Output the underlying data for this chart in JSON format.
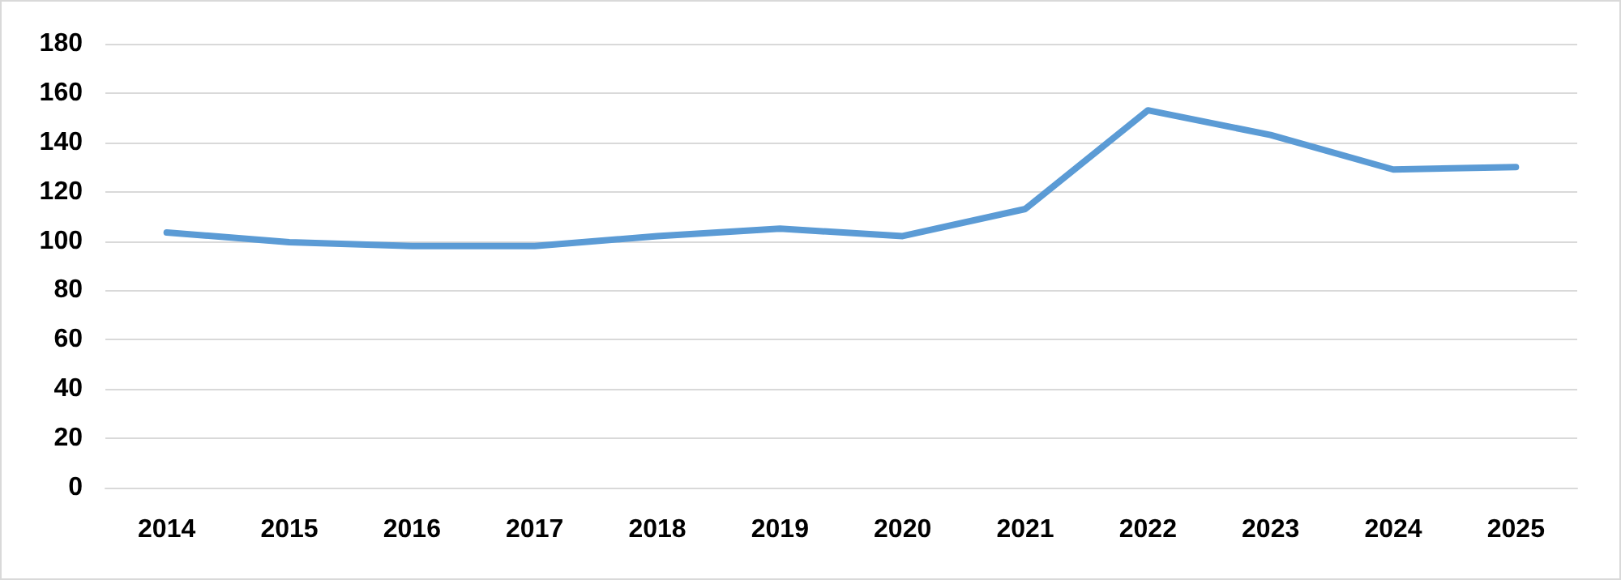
{
  "chart_data": {
    "type": "line",
    "categories": [
      "2014",
      "2015",
      "2016",
      "2017",
      "2018",
      "2019",
      "2020",
      "2021",
      "2022",
      "2023",
      "2024",
      "2025"
    ],
    "series": [
      {
        "color": "#5b9bd5",
        "values": [
          103.5,
          99.5,
          98,
          98,
          102,
          105,
          102,
          113,
          153,
          143,
          129,
          130
        ]
      }
    ],
    "ylim": [
      0,
      180
    ],
    "yticks": [
      0,
      20,
      40,
      60,
      80,
      100,
      120,
      140,
      160,
      180
    ],
    "grid": "y",
    "marker": "none",
    "line_style": "solid"
  }
}
